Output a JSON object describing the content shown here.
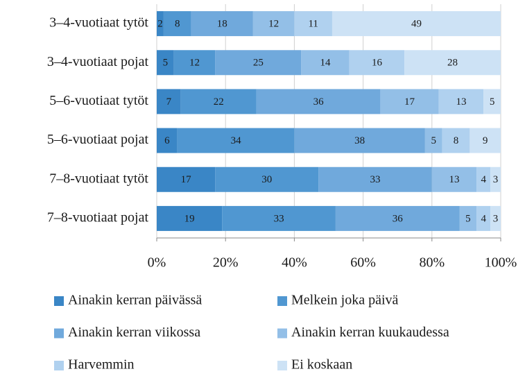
{
  "chart_data": {
    "type": "stacked-barh",
    "categories": [
      "3–4-vuotiaat tytöt",
      "3–4-vuotiaat pojat",
      "5–6-vuotiaat tytöt",
      "5–6-vuotiaat pojat",
      "7–8-vuotiaat tytöt",
      "7–8-vuotiaat pojat"
    ],
    "series": [
      {
        "name": "Ainakin kerran päivässä",
        "color": "#3a86c6",
        "values": [
          2,
          5,
          7,
          6,
          17,
          19
        ]
      },
      {
        "name": "Melkein joka päivä",
        "color": "#5097d1",
        "values": [
          8,
          12,
          22,
          34,
          30,
          33
        ]
      },
      {
        "name": "Ainakin kerran viikossa",
        "color": "#70a9dc",
        "values": [
          18,
          25,
          36,
          38,
          33,
          36
        ]
      },
      {
        "name": "Ainakin kerran kuukaudessa",
        "color": "#93bfe7",
        "values": [
          12,
          14,
          17,
          5,
          13,
          5
        ]
      },
      {
        "name": "Harvemmin",
        "color": "#b0d1ef",
        "values": [
          11,
          16,
          13,
          8,
          4,
          4
        ]
      },
      {
        "name": "Ei koskaan",
        "color": "#cde2f5",
        "values": [
          49,
          28,
          5,
          9,
          3,
          3
        ]
      }
    ],
    "xlim": [
      0,
      100
    ],
    "xticks": [
      {
        "value": 0,
        "label": "0%"
      },
      {
        "value": 20,
        "label": "20%"
      },
      {
        "value": 40,
        "label": "40%"
      },
      {
        "value": 60,
        "label": "60%"
      },
      {
        "value": 80,
        "label": "80%"
      },
      {
        "value": 100,
        "label": "100%"
      }
    ],
    "grid": true
  }
}
